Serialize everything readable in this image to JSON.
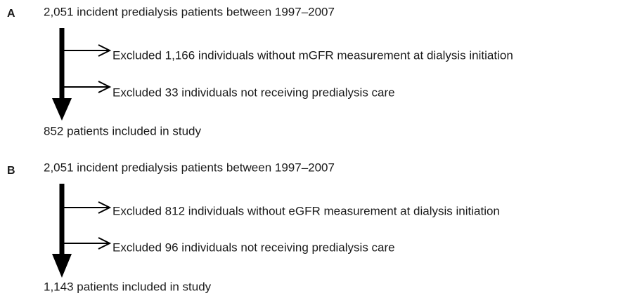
{
  "panels": [
    {
      "label": "A",
      "start": "2,051 incident predialysis patients between 1997–2007",
      "exclusions": [
        "Excluded 1,166 individuals without mGFR measurement at dialysis initiation",
        "Excluded 33 individuals not receiving predialysis care"
      ],
      "result": "852 patients included in study"
    },
    {
      "label": "B",
      "start": "2,051 incident predialysis patients between 1997–2007",
      "exclusions": [
        "Excluded 812 individuals without eGFR measurement at dialysis initiation",
        "Excluded 96 individuals not receiving predialysis care"
      ],
      "result": "1,143 patients included in study"
    }
  ]
}
